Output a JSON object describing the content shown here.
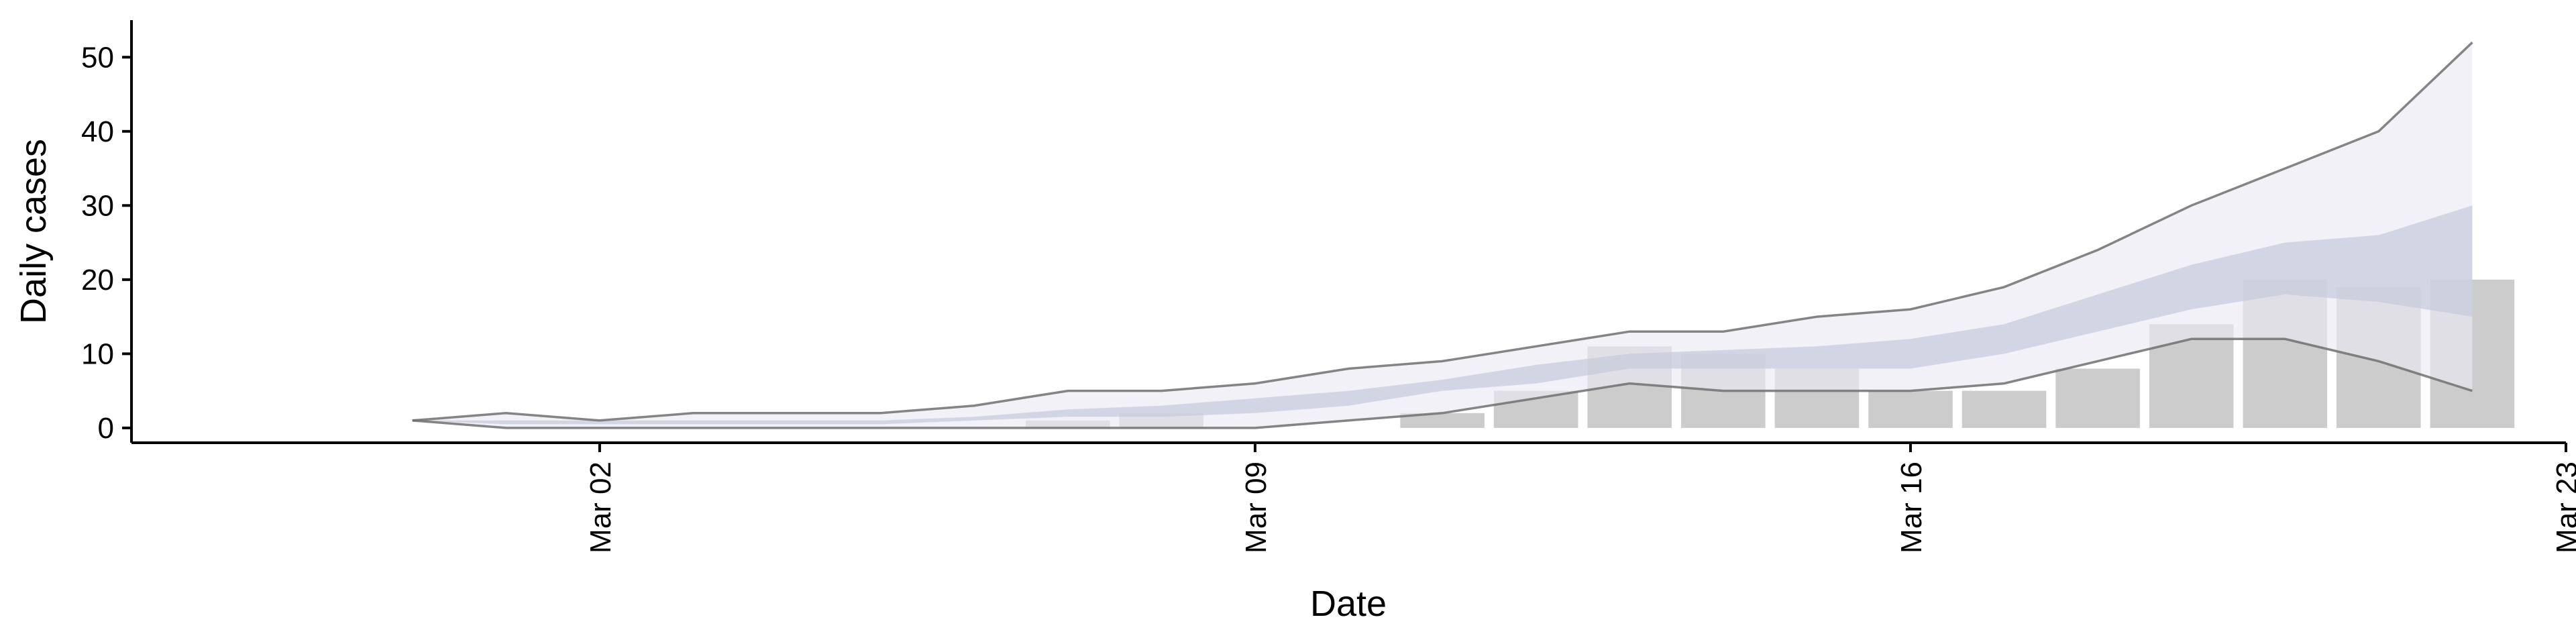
{
  "chart_data": {
    "type": "bar",
    "title": "",
    "xlabel": "Date",
    "ylabel": "Daily cases",
    "x_type": "date",
    "xlim": [
      "2020-02-26",
      "2020-03-23"
    ],
    "ylim": [
      -2,
      55
    ],
    "x_ticks": [
      {
        "date": "2020-03-02",
        "label": "Mar 02"
      },
      {
        "date": "2020-03-09",
        "label": "Mar 09"
      },
      {
        "date": "2020-03-16",
        "label": "Mar 16"
      },
      {
        "date": "2020-03-23",
        "label": "Mar 23"
      }
    ],
    "y_ticks": [
      0,
      10,
      20,
      30,
      40,
      50
    ],
    "grid": false,
    "legend": "none",
    "colors": {
      "bars": "#cccccc",
      "outer_band": "#eaeaf2",
      "inner_band": "#c4cadc",
      "band_edges": "#707070"
    },
    "series": [
      {
        "kind": "bars",
        "dates": [
          "2020-03-07",
          "2020-03-08",
          "2020-03-11",
          "2020-03-12",
          "2020-03-13",
          "2020-03-14",
          "2020-03-15",
          "2020-03-16",
          "2020-03-17",
          "2020-03-18",
          "2020-03-19",
          "2020-03-20",
          "2020-03-21",
          "2020-03-22"
        ],
        "values": [
          1,
          2,
          2,
          5,
          11,
          10,
          8,
          5,
          5,
          8,
          14,
          20,
          19,
          20
        ]
      },
      {
        "kind": "interval",
        "dates": [
          "2020-02-29",
          "2020-03-01",
          "2020-03-02",
          "2020-03-03",
          "2020-03-04",
          "2020-03-05",
          "2020-03-06",
          "2020-03-07",
          "2020-03-08",
          "2020-03-09",
          "2020-03-10",
          "2020-03-11",
          "2020-03-12",
          "2020-03-13",
          "2020-03-14",
          "2020-03-15",
          "2020-03-16",
          "2020-03-17",
          "2020-03-18",
          "2020-03-19",
          "2020-03-20",
          "2020-03-21",
          "2020-03-22"
        ],
        "outer_low": [
          1,
          0,
          0,
          0,
          0,
          0,
          0,
          0,
          0,
          0,
          1,
          2,
          4,
          6,
          5,
          5,
          5,
          6,
          9,
          12,
          12,
          9,
          5
        ],
        "outer_high": [
          1,
          2,
          1,
          2,
          2,
          2,
          3,
          5,
          5,
          6,
          8,
          9,
          11,
          13,
          13,
          15,
          16,
          19,
          24,
          30,
          35,
          40,
          52
        ],
        "inner_low": [
          1,
          0.5,
          0.5,
          0.5,
          0.5,
          0.5,
          1,
          1.5,
          1.5,
          2,
          3,
          5,
          6,
          8,
          8,
          8,
          8,
          10,
          13,
          16,
          18,
          17,
          15
        ],
        "inner_high": [
          1,
          1,
          1,
          1,
          1,
          1,
          1.5,
          2.5,
          3,
          4,
          5,
          6.5,
          8.5,
          10,
          10.5,
          11,
          12,
          14,
          18,
          22,
          25,
          26,
          30
        ]
      }
    ]
  }
}
